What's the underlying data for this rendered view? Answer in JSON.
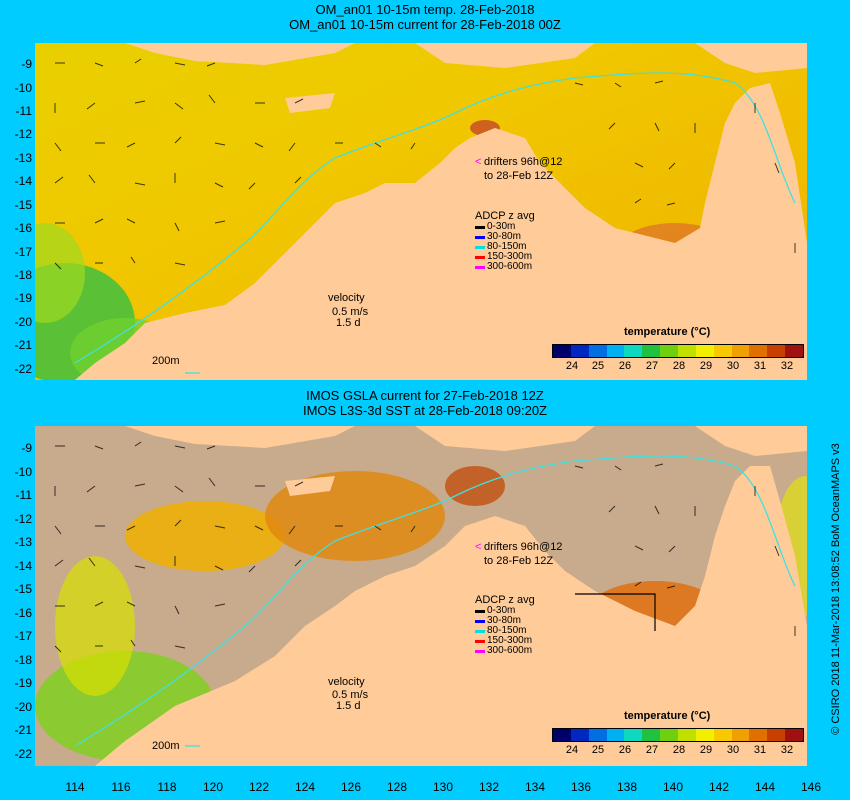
{
  "top_panel": {
    "title_line1": "OM_an01 10-15m temp. 28-Feb-2018",
    "title_line2": "OM_an01 10-15m current for 28-Feb-2018 00Z"
  },
  "bottom_panel": {
    "title_line1": "IMOS GSLA current for 27-Feb-2018 12Z",
    "title_line2": "IMOS L3S-3d SST at 28-Feb-2018 09:20Z"
  },
  "drifters": {
    "line1": "drifters 96h@12",
    "line2": "to 28-Feb 12Z",
    "marker": "<"
  },
  "adcp": {
    "title": "ADCP z avg",
    "items": [
      {
        "label": "0-30m",
        "color": "#000000"
      },
      {
        "label": "30-80m",
        "color": "#0000ff"
      },
      {
        "label": "80-150m",
        "color": "#00e0e0"
      },
      {
        "label": "150-300m",
        "color": "#ff0000"
      },
      {
        "label": "300-600m",
        "color": "#ff00ff"
      }
    ]
  },
  "velocity": {
    "title": "velocity",
    "speed": "0.5 m/s",
    "duration": "1.5 d"
  },
  "isobath_label": "200m",
  "colorbar": {
    "title": "temperature (°C)",
    "ticks": [
      "24",
      "25",
      "26",
      "27",
      "28",
      "29",
      "30",
      "31",
      "32"
    ],
    "colors": [
      "#00006a",
      "#0028c0",
      "#0070e0",
      "#00b0f0",
      "#10d8c0",
      "#20c040",
      "#70d010",
      "#c0e000",
      "#f0f000",
      "#f8c800",
      "#f0a000",
      "#e07000",
      "#c84000",
      "#a01010"
    ]
  },
  "y_axis": [
    "-9",
    "-10",
    "-11",
    "-12",
    "-13",
    "-14",
    "-15",
    "-16",
    "-17",
    "-18",
    "-19",
    "-20",
    "-21",
    "-22"
  ],
  "x_axis": [
    "114",
    "116",
    "118",
    "120",
    "122",
    "124",
    "126",
    "128",
    "130",
    "132",
    "134",
    "136",
    "138",
    "140",
    "142",
    "144",
    "146"
  ],
  "credit": "© CSIRO 2018  11-Mar-2018 13:08:52 BoM OceanMAPS v3",
  "colors": {
    "background": "#00ccff",
    "land": "#ffcc99",
    "no_data": "#c8aa8c"
  }
}
